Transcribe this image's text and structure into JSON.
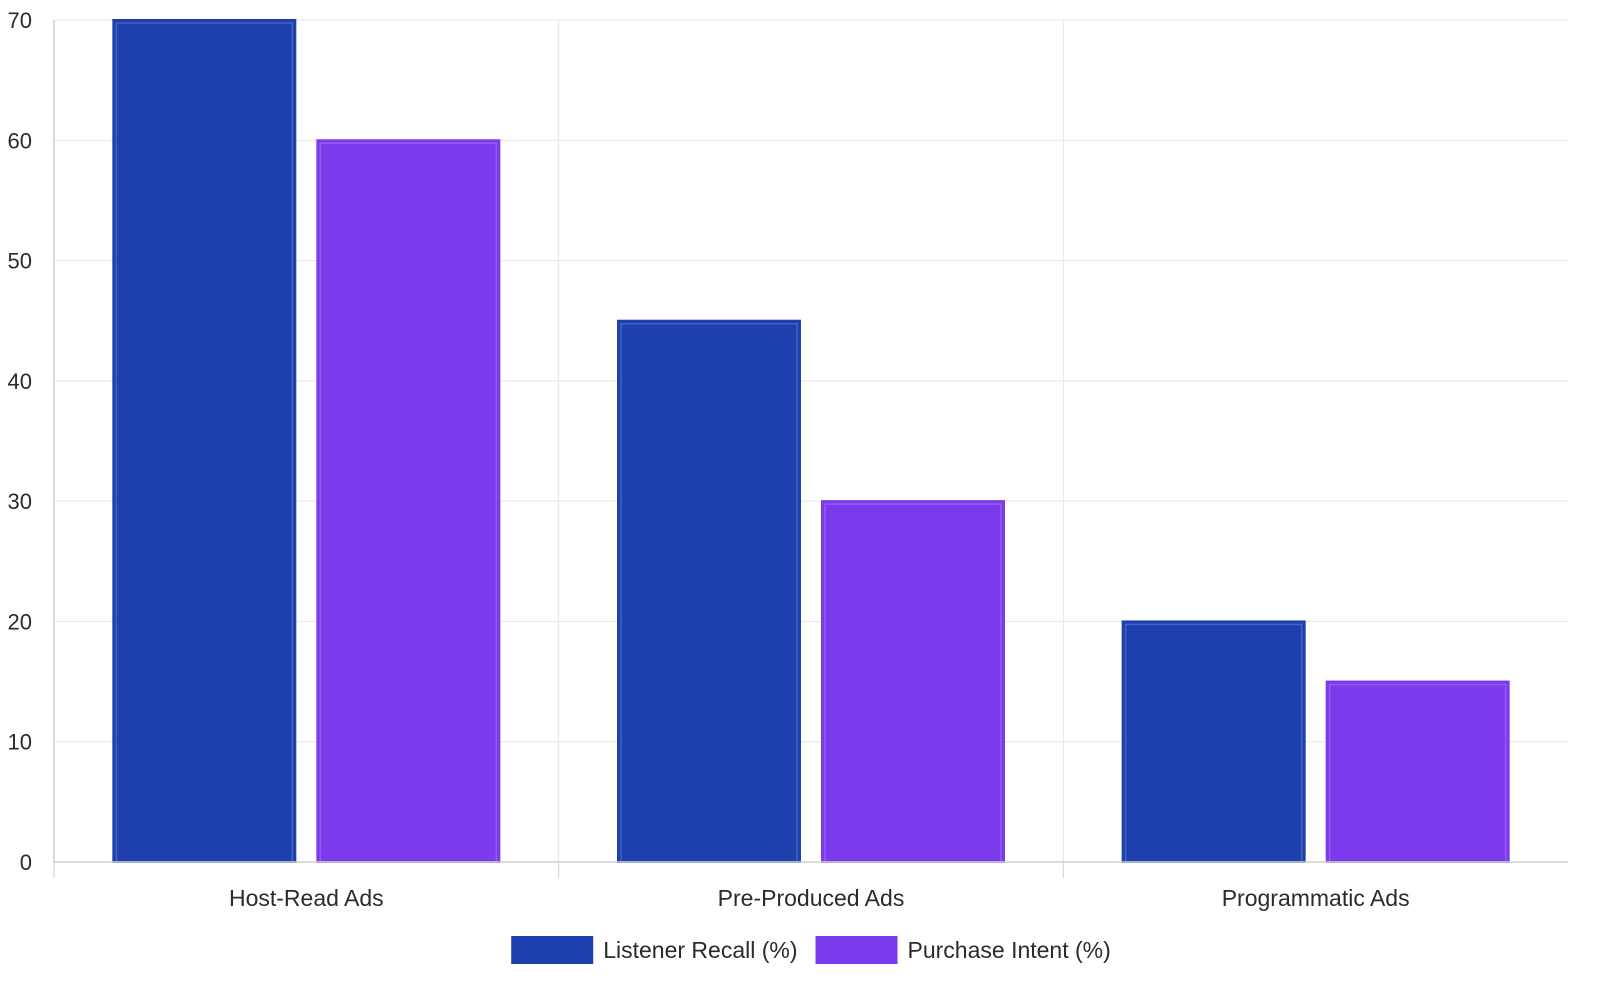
{
  "chart_data": {
    "type": "bar",
    "categories": [
      "Host-Read Ads",
      "Pre-Produced Ads",
      "Programmatic Ads"
    ],
    "series": [
      {
        "name": "Listener Recall (%)",
        "values": [
          70,
          45,
          20
        ],
        "color": "#1e40af"
      },
      {
        "name": "Purchase Intent (%)",
        "values": [
          60,
          30,
          15
        ],
        "color": "#7c3aed"
      }
    ],
    "yticks": [
      0,
      10,
      20,
      30,
      40,
      50,
      60,
      70
    ],
    "ylim": [
      0,
      70
    ],
    "grid": true,
    "legend_position": "bottom-center",
    "title": "",
    "xlabel": "",
    "ylabel": ""
  }
}
